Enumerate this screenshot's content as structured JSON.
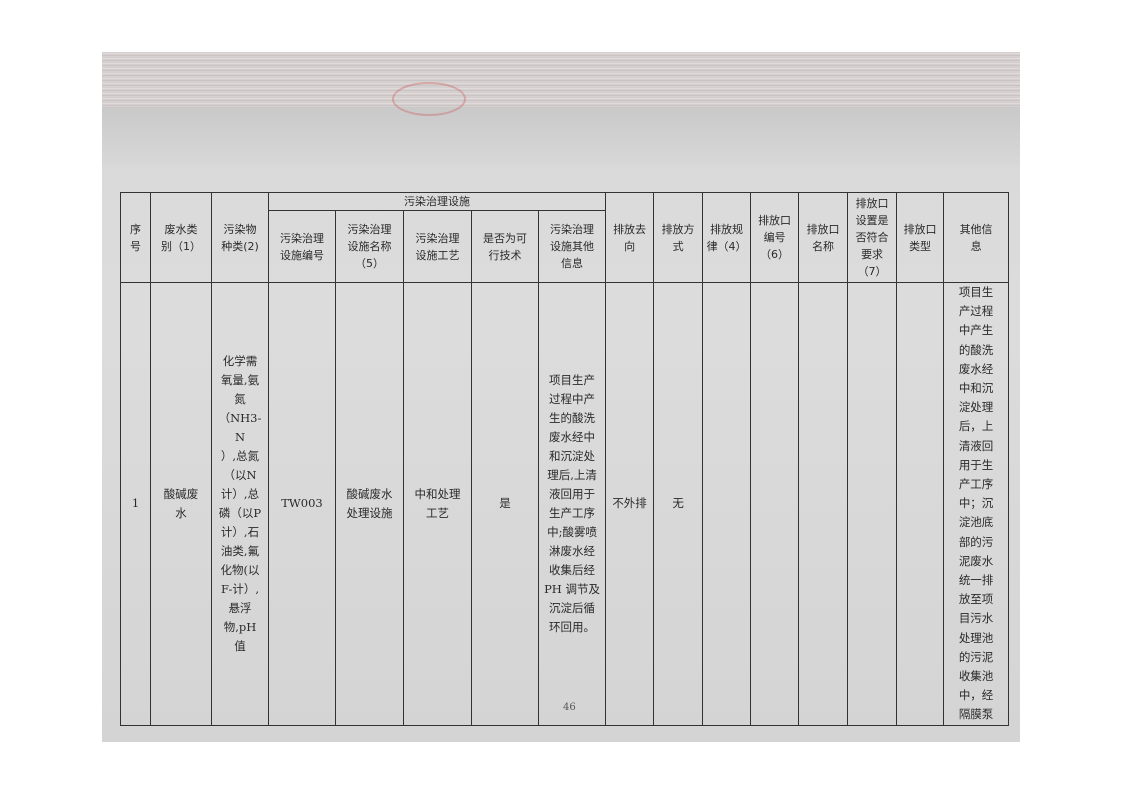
{
  "table": {
    "group_header": "污染治理设施",
    "headers": {
      "seq": "序\n号",
      "wastewater_type": "废水类\n别（1）",
      "pollutant_type": "污染物\n种类(2)",
      "facility_no": "污染治理\n设施编号",
      "facility_name": "污染治理\n设施名称\n（5）",
      "facility_process": "污染治理\n设施工艺",
      "feasible": "是否为可\n行技术",
      "facility_other": "污染治理\n设施其他\n信息",
      "discharge_dest": "排放去\n向",
      "discharge_mode": "排放方\n式",
      "discharge_pattern": "排放规\n律（4）",
      "outlet_no": "排放口\n编号\n（6）",
      "outlet_name": "排放口\n名称",
      "outlet_compliant": "排放口\n设置是\n否符合\n要求\n（7）",
      "outlet_type": "排放口\n类型",
      "other_info": "其他信\n息"
    },
    "rows": [
      {
        "seq": "1",
        "wastewater_type": "酸碱废\n水",
        "pollutant_type": "化学需\n氧量,氨\n氮\n（NH3-N\n）,总氮\n（以N\n计）,总\n磷（以P\n计）,石\n油类,氟\n化物(以\nF-计）,\n悬浮\n物,pH\n值",
        "facility_no": "TW003",
        "facility_name": "酸碱废水\n处理设施",
        "facility_process": "中和处理\n工艺",
        "feasible": "是",
        "facility_other": "项目生产\n过程中产\n生的酸洗\n废水经中\n和沉淀处\n理后,上清\n液回用于\n生产工序\n中;酸雾喷\n淋废水经\n收集后经\nPH 调节及\n沉淀后循\n环回用。",
        "discharge_dest": "不外排",
        "discharge_mode": "无",
        "discharge_pattern": "",
        "outlet_no": "",
        "outlet_name": "",
        "outlet_compliant": "",
        "outlet_type": "",
        "other_info": "项目生\n产过程\n中产生\n的酸洗\n废水经\n中和沉\n淀处理\n后，上\n清液回\n用于生\n产工序\n中；沉\n淀池底\n部的污\n泥废水\n统一排\n放至项\n目污水\n处理池\n的污泥\n收集池\n中，经\n隔膜泵"
      }
    ]
  },
  "page_number": "46"
}
